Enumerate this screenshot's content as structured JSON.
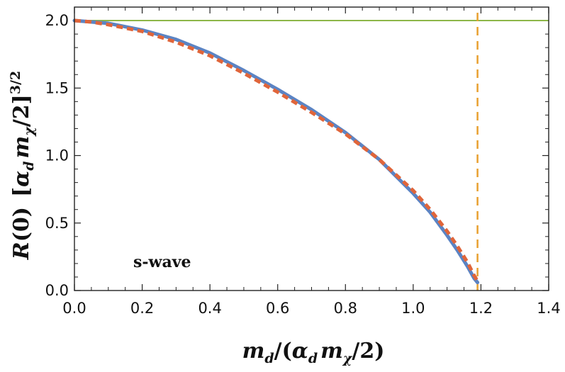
{
  "chart_data": {
    "type": "line",
    "xlim": [
      0.0,
      1.4
    ],
    "ylim": [
      0.0,
      2.1
    ],
    "x_ticks": [
      "0.0",
      "0.2",
      "0.4",
      "0.6",
      "0.8",
      "1.0",
      "1.2",
      "1.4"
    ],
    "y_ticks": [
      "0.0",
      "0.5",
      "1.0",
      "1.5",
      "2.0"
    ],
    "xlabel": {
      "main": "m",
      "sub1": "d",
      "mid": "/(",
      "alpha": "α",
      "sub2": "d",
      "m2": "m",
      "chi": "χ",
      "tail": "/2)"
    },
    "ylabel": {
      "R": "R",
      "R_arg": "(0)",
      "open": "[",
      "alpha": "α",
      "alpha_sub": "d",
      "m": "m",
      "m_sub": "χ",
      "close": "/2]",
      "power": "3/2"
    },
    "annotation": "s-wave",
    "grid": false,
    "series": [
      {
        "style": "solid",
        "color": "#5b84c4",
        "x": [
          0.0,
          0.05,
          0.1,
          0.2,
          0.3,
          0.4,
          0.5,
          0.6,
          0.7,
          0.8,
          0.9,
          1.0,
          1.05,
          1.1,
          1.13,
          1.16,
          1.18,
          1.19
        ],
        "y": [
          2.0,
          1.99,
          1.98,
          1.93,
          1.86,
          1.76,
          1.63,
          1.49,
          1.34,
          1.17,
          0.97,
          0.72,
          0.58,
          0.41,
          0.3,
          0.18,
          0.09,
          0.06
        ]
      },
      {
        "style": "dashed",
        "color": "#e0653a",
        "x": [
          0.0,
          0.05,
          0.1,
          0.2,
          0.3,
          0.4,
          0.5,
          0.6,
          0.7,
          0.8,
          0.9,
          1.0,
          1.05,
          1.1,
          1.13,
          1.16,
          1.18,
          1.19
        ],
        "y": [
          2.0,
          1.99,
          1.97,
          1.92,
          1.84,
          1.74,
          1.61,
          1.47,
          1.32,
          1.16,
          0.97,
          0.74,
          0.6,
          0.44,
          0.33,
          0.21,
          0.11,
          0.07
        ]
      },
      {
        "style": "solid-thin",
        "color": "#8db648",
        "x": [
          0.0,
          1.4
        ],
        "y": [
          2.0,
          2.0
        ]
      },
      {
        "style": "vertical-dashed",
        "color": "#e8a030",
        "x": [
          1.19,
          1.19
        ],
        "y": [
          0.0,
          2.1
        ]
      }
    ]
  }
}
